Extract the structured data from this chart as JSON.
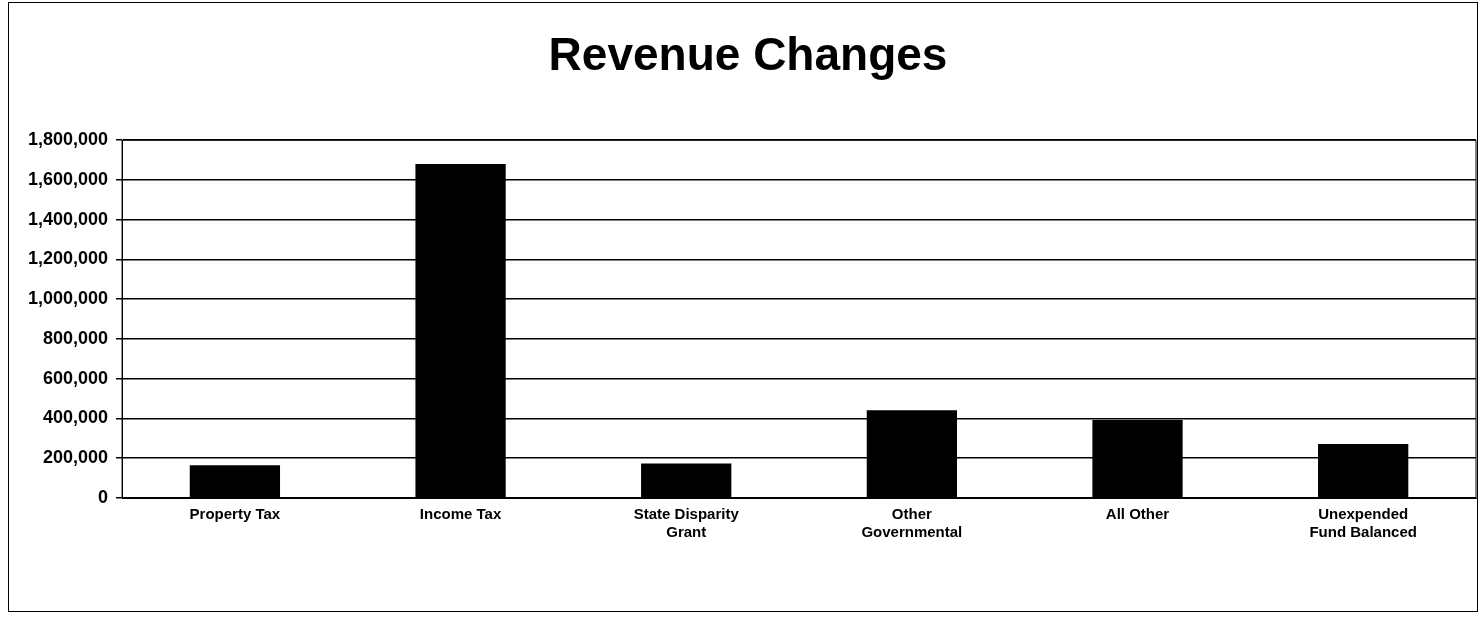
{
  "chart_data": {
    "type": "bar",
    "title": "Revenue Changes",
    "categories": [
      "Property Tax",
      "Income Tax",
      "State Disparity Grant",
      "Other Governmental",
      "All Other",
      "Unexpended Fund Balanced"
    ],
    "values": [
      165000,
      1680000,
      174000,
      442000,
      393000,
      272000
    ],
    "color": "#000000",
    "ylim": [
      0,
      1800000
    ],
    "yticks": [
      0,
      {
        "value": 200000,
        "label": "200,000"
      },
      {
        "value": 400000,
        "label": "400,000"
      },
      {
        "value": 600000,
        "label": "600,000"
      },
      {
        "value": 800000,
        "label": "800,000"
      },
      {
        "value": 1000000,
        "label": "1,000,000"
      },
      {
        "value": 1200000,
        "label": "1,200,000"
      },
      {
        "value": 1400000,
        "label": "1,400,000"
      },
      {
        "value": 1600000,
        "label": "1,600,000"
      },
      {
        "value": 1800000,
        "label": "1,800,000"
      }
    ],
    "grid": "y"
  }
}
